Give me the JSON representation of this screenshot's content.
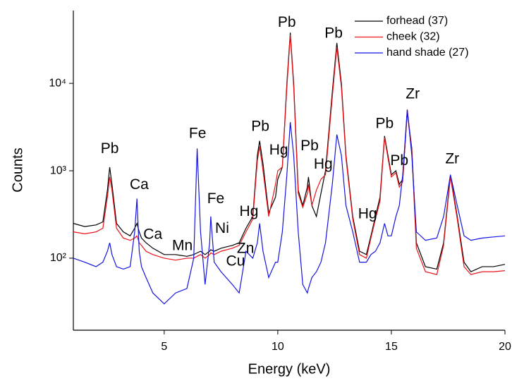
{
  "chart_data": {
    "type": "line",
    "xlabel": "Energy (keV)",
    "ylabel": "Counts",
    "xlim": [
      1,
      20
    ],
    "ylim": [
      15,
      68000
    ],
    "log_y": true,
    "legend": "upper right",
    "xticks": [
      5,
      10,
      15,
      20
    ],
    "yticks": [
      {
        "value": 100,
        "label": "10²"
      },
      {
        "value": 1000,
        "label": "10³"
      },
      {
        "value": 10000,
        "label": "10⁴"
      }
    ],
    "x": [
      1.0,
      1.5,
      2.0,
      2.3,
      2.5,
      2.6,
      2.7,
      2.9,
      3.2,
      3.5,
      3.7,
      3.8,
      3.9,
      4.0,
      4.2,
      4.5,
      5.0,
      5.5,
      6.0,
      6.3,
      6.45,
      6.6,
      6.8,
      7.0,
      7.05,
      7.2,
      7.5,
      8.0,
      8.3,
      8.6,
      8.9,
      9.1,
      9.2,
      9.35,
      9.6,
      9.9,
      10.0,
      10.2,
      10.4,
      10.55,
      10.7,
      10.9,
      11.1,
      11.3,
      11.35,
      11.5,
      11.7,
      11.9,
      12.1,
      12.4,
      12.6,
      12.8,
      13.0,
      13.3,
      13.6,
      13.9,
      14.1,
      14.3,
      14.5,
      14.7,
      14.85,
      15.0,
      15.2,
      15.35,
      15.5,
      15.7,
      15.9,
      16.1,
      16.5,
      17.0,
      17.3,
      17.6,
      17.9,
      18.2,
      18.5,
      19.0,
      19.5,
      20.0
    ],
    "series": [
      {
        "name": "forhead (37)",
        "color": "#000000",
        "values": [
          250,
          230,
          240,
          260,
          600,
          1100,
          700,
          250,
          200,
          180,
          220,
          250,
          200,
          170,
          150,
          130,
          110,
          110,
          105,
          110,
          115,
          120,
          110,
          120,
          125,
          120,
          130,
          140,
          150,
          220,
          300,
          1500,
          2200,
          1200,
          330,
          500,
          800,
          1100,
          10000,
          38000,
          10000,
          600,
          400,
          650,
          850,
          400,
          300,
          550,
          1000,
          8000,
          29000,
          10000,
          1500,
          300,
          120,
          110,
          180,
          300,
          500,
          2500,
          1500,
          900,
          1000,
          700,
          800,
          4700,
          1800,
          150,
          80,
          75,
          150,
          900,
          300,
          90,
          70,
          80,
          80,
          85
        ]
      },
      {
        "name": "cheek (32)",
        "color": "#e8141a",
        "values": [
          200,
          190,
          200,
          220,
          500,
          850,
          600,
          220,
          170,
          160,
          170,
          180,
          150,
          140,
          120,
          110,
          100,
          95,
          100,
          100,
          105,
          110,
          100,
          110,
          115,
          110,
          120,
          130,
          140,
          200,
          280,
          1300,
          1900,
          1000,
          300,
          700,
          1000,
          1100,
          9000,
          36000,
          9000,
          550,
          380,
          550,
          700,
          400,
          600,
          800,
          900,
          7000,
          26000,
          9000,
          1400,
          280,
          110,
          100,
          170,
          280,
          450,
          2400,
          1400,
          850,
          950,
          650,
          750,
          5000,
          1700,
          130,
          70,
          65,
          140,
          850,
          280,
          80,
          65,
          70,
          70,
          72
        ]
      },
      {
        "name": "hand shade (27)",
        "color": "#1414e0",
        "values": [
          100,
          90,
          80,
          90,
          120,
          150,
          110,
          80,
          75,
          80,
          200,
          480,
          120,
          80,
          60,
          40,
          30,
          40,
          45,
          100,
          1800,
          200,
          50,
          150,
          300,
          90,
          70,
          50,
          40,
          120,
          100,
          150,
          250,
          120,
          60,
          90,
          90,
          200,
          900,
          3600,
          1500,
          200,
          50,
          40,
          45,
          60,
          70,
          90,
          150,
          700,
          2600,
          1500,
          400,
          200,
          90,
          90,
          110,
          120,
          150,
          250,
          180,
          180,
          300,
          400,
          900,
          5000,
          1500,
          200,
          160,
          170,
          300,
          900,
          400,
          180,
          160,
          170,
          175,
          180
        ]
      }
    ],
    "annotations": [
      {
        "text": "Pb",
        "x": 2.6,
        "y": 1758
      },
      {
        "text": "Ca",
        "x": 3.9,
        "y": 684
      },
      {
        "text": "Ca",
        "x": 4.5,
        "y": 184
      },
      {
        "text": "Mn",
        "x": 5.8,
        "y": 137
      },
      {
        "text": "Fe",
        "x": 6.47,
        "y": 2630
      },
      {
        "text": "Fe",
        "x": 7.27,
        "y": 473
      },
      {
        "text": "Ni",
        "x": 7.55,
        "y": 217
      },
      {
        "text": "Zn",
        "x": 8.58,
        "y": 127
      },
      {
        "text": "Cu",
        "x": 8.14,
        "y": 91
      },
      {
        "text": "Hg",
        "x": 8.73,
        "y": 339
      },
      {
        "text": "Pb",
        "x": 9.23,
        "y": 3160
      },
      {
        "text": "Hg",
        "x": 10.04,
        "y": 1700
      },
      {
        "text": "Pb",
        "x": 10.4,
        "y": 49000
      },
      {
        "text": "Pb",
        "x": 11.4,
        "y": 1900
      },
      {
        "text": "Hg",
        "x": 12.0,
        "y": 1170
      },
      {
        "text": "Pb",
        "x": 12.46,
        "y": 37000
      },
      {
        "text": "Hg",
        "x": 13.95,
        "y": 315
      },
      {
        "text": "Pb",
        "x": 14.7,
        "y": 3400
      },
      {
        "text": "Pb",
        "x": 15.35,
        "y": 1290
      },
      {
        "text": "Zr",
        "x": 15.94,
        "y": 7450
      },
      {
        "text": "Zr",
        "x": 17.68,
        "y": 1350
      }
    ]
  }
}
